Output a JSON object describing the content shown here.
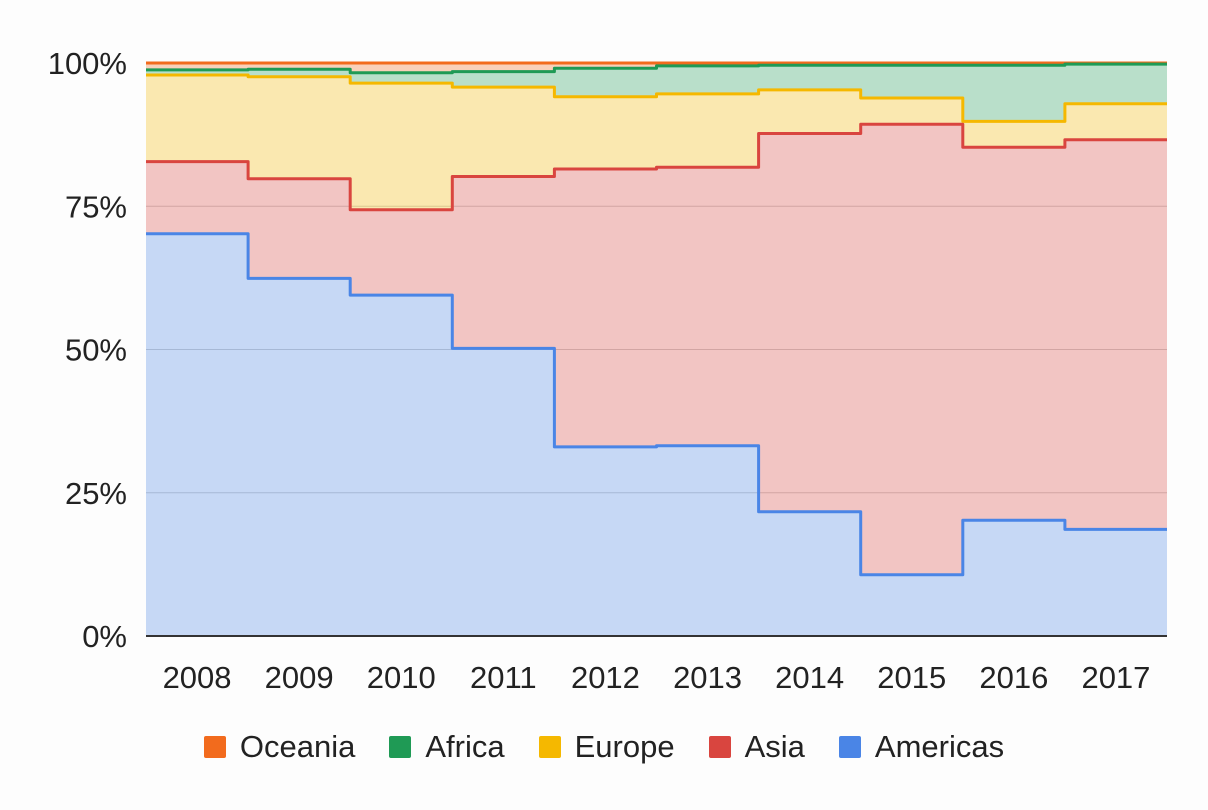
{
  "chart_data": {
    "type": "area",
    "stacked": true,
    "normalized": true,
    "step": true,
    "categories": [
      "2008",
      "2009",
      "2010",
      "2011",
      "2012",
      "2013",
      "2014",
      "2015",
      "2016",
      "2017"
    ],
    "series": [
      {
        "name": "Americas",
        "color": "#4a85e6",
        "values": [
          70.2,
          62.4,
          59.5,
          50.2,
          33.0,
          33.2,
          21.7,
          10.7,
          20.2,
          18.6
        ]
      },
      {
        "name": "Asia",
        "color": "#d9453f",
        "values": [
          12.6,
          17.4,
          14.9,
          30.0,
          48.5,
          48.6,
          66.0,
          78.6,
          65.1,
          68.0
        ]
      },
      {
        "name": "Europe",
        "color": "#f5b800",
        "values": [
          15.1,
          17.8,
          22.1,
          15.6,
          12.6,
          12.8,
          7.6,
          4.6,
          4.5,
          6.3
        ]
      },
      {
        "name": "Africa",
        "color": "#1f9a55",
        "values": [
          0.9,
          1.3,
          1.8,
          2.7,
          5.0,
          4.9,
          4.3,
          5.7,
          9.8,
          6.9
        ]
      },
      {
        "name": "Oceania",
        "color": "#f26b1d",
        "values": [
          1.2,
          1.1,
          1.7,
          1.5,
          0.9,
          0.5,
          0.4,
          0.4,
          0.4,
          0.2
        ]
      }
    ],
    "legend_order": [
      "Oceania",
      "Africa",
      "Europe",
      "Asia",
      "Americas"
    ],
    "y_ticks": [
      0,
      25,
      50,
      75,
      100
    ],
    "y_tick_labels": [
      "0%",
      "25%",
      "50%",
      "75%",
      "100%"
    ],
    "ylim": [
      0,
      100
    ],
    "grid": true,
    "title": "",
    "xlabel": "",
    "ylabel": "",
    "legend_position": "bottom"
  }
}
